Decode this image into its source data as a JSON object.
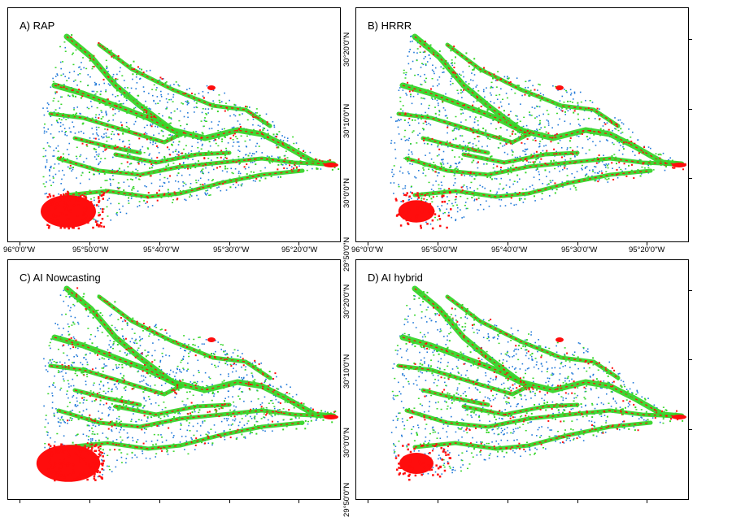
{
  "colors": {
    "overlap": "#36d62a",
    "model_only": "#ff0d0d",
    "reference_only": "#1f78d8"
  },
  "panels": [
    {
      "id": "A",
      "title": "A) RAP",
      "seed": 11,
      "extraRed": 1.0
    },
    {
      "id": "B",
      "title": "B) HRRR",
      "seed": 23,
      "extraRed": 0.55
    },
    {
      "id": "C",
      "title": "C) AI Nowcasting",
      "seed": 37,
      "extraRed": 1.2
    },
    {
      "id": "D",
      "title": "D) AI hybrid",
      "seed": 51,
      "extraRed": 0.5
    }
  ],
  "x_ticks_top_left": [
    "96°0'0\"W",
    "95°50'0\"W",
    "95°40'0\"W",
    "95°30'0\"W",
    "95°20'0\"W"
  ],
  "x_ticks_top_right": [
    "96°0'0\"W",
    "95°50'0\"W",
    "95°40'0\"W",
    "95°30'0\"W",
    "95°20'0\"W"
  ],
  "y_ticks_top": [
    "30°20'0\"N",
    "30°10'0\"N",
    "30°0'0\"N",
    "29°50'0\"N"
  ],
  "y_ticks_bottom": [
    "30°20'0\"N",
    "30°10'0\"N",
    "30°0'0\"N",
    "29°50'0\"N"
  ]
}
